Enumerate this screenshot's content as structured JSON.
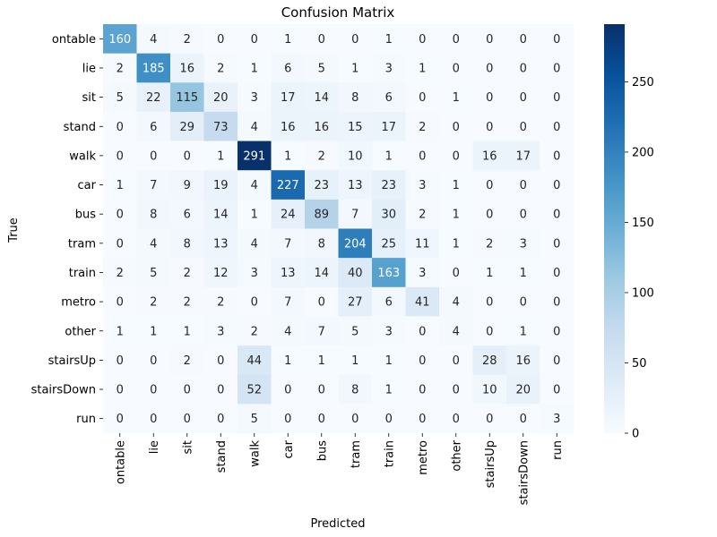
{
  "chart_data": {
    "type": "heatmap",
    "title": "Confusion Matrix",
    "xlabel": "Predicted",
    "ylabel": "True",
    "x_categories": [
      "ontable",
      "lie",
      "sit",
      "stand",
      "walk",
      "car",
      "bus",
      "tram",
      "train",
      "metro",
      "other",
      "stairsUp",
      "stairsDown",
      "run"
    ],
    "y_categories": [
      "ontable",
      "lie",
      "sit",
      "stand",
      "walk",
      "car",
      "bus",
      "tram",
      "train",
      "metro",
      "other",
      "stairsUp",
      "stairsDown",
      "run"
    ],
    "values": [
      [
        160,
        4,
        2,
        0,
        0,
        1,
        0,
        0,
        1,
        0,
        0,
        0,
        0,
        0
      ],
      [
        2,
        185,
        16,
        2,
        1,
        6,
        5,
        1,
        3,
        1,
        0,
        0,
        0,
        0
      ],
      [
        5,
        22,
        115,
        20,
        3,
        17,
        14,
        8,
        6,
        0,
        1,
        0,
        0,
        0
      ],
      [
        0,
        6,
        29,
        73,
        4,
        16,
        16,
        15,
        17,
        2,
        0,
        0,
        0,
        0
      ],
      [
        0,
        0,
        0,
        1,
        291,
        1,
        2,
        10,
        1,
        0,
        0,
        16,
        17,
        0
      ],
      [
        1,
        7,
        9,
        19,
        4,
        227,
        23,
        13,
        23,
        3,
        1,
        0,
        0,
        0
      ],
      [
        0,
        8,
        6,
        14,
        1,
        24,
        89,
        7,
        30,
        2,
        1,
        0,
        0,
        0
      ],
      [
        0,
        4,
        8,
        13,
        4,
        7,
        8,
        204,
        25,
        11,
        1,
        2,
        3,
        0
      ],
      [
        2,
        5,
        2,
        12,
        3,
        13,
        14,
        40,
        163,
        3,
        0,
        1,
        1,
        0
      ],
      [
        0,
        2,
        2,
        2,
        0,
        7,
        0,
        27,
        6,
        41,
        4,
        0,
        0,
        0
      ],
      [
        1,
        1,
        1,
        3,
        2,
        4,
        7,
        5,
        3,
        0,
        4,
        0,
        1,
        0
      ],
      [
        0,
        0,
        2,
        0,
        44,
        1,
        1,
        1,
        1,
        0,
        0,
        28,
        16,
        0
      ],
      [
        0,
        0,
        0,
        0,
        52,
        0,
        0,
        8,
        1,
        0,
        0,
        10,
        20,
        0
      ],
      [
        0,
        0,
        0,
        0,
        5,
        0,
        0,
        0,
        0,
        0,
        0,
        0,
        0,
        3
      ]
    ],
    "colormap": "Blues",
    "vmin": 0,
    "vmax": 291,
    "colorbar_ticks": [
      0,
      50,
      100,
      150,
      200,
      250
    ],
    "annotations": true
  }
}
